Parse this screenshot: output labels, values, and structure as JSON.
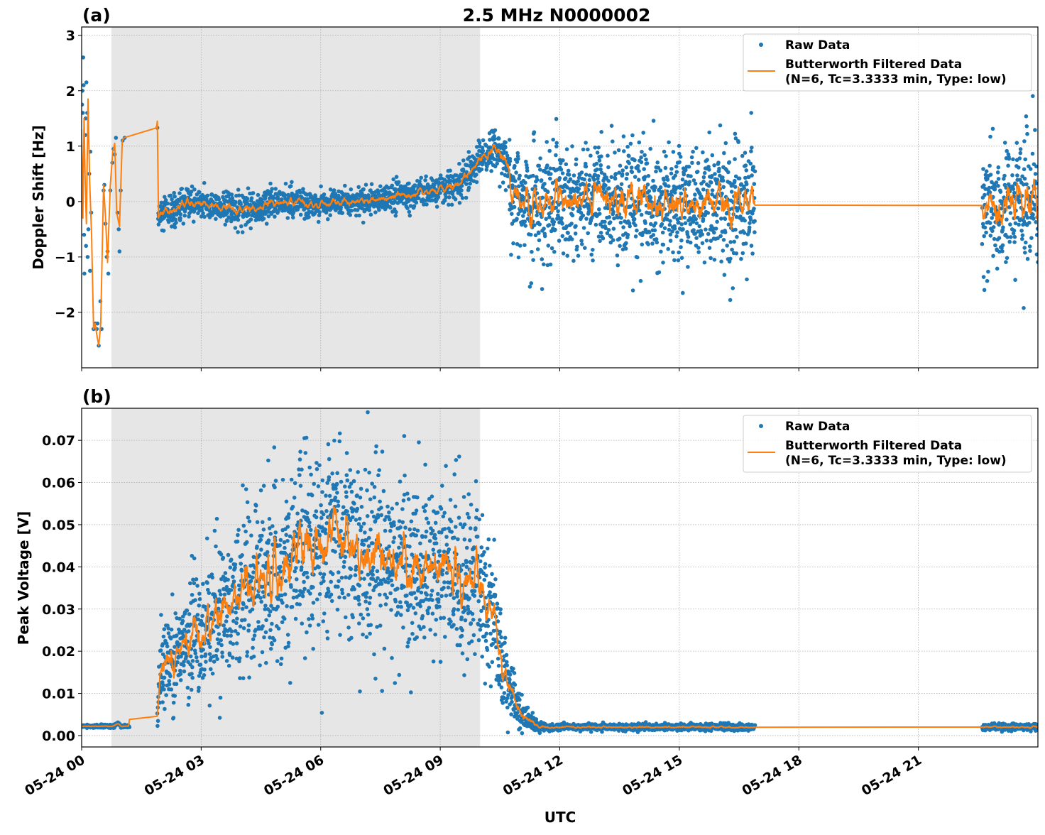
{
  "title": "2.5 MHz N0000002",
  "colors": {
    "raw": "#1f77b4",
    "filtered": "#ff7f0e",
    "shade": "#e6e6e6",
    "grid": "#b0b0b0"
  },
  "legend": {
    "raw_label": "Raw Data",
    "filtered_label_line1": "Butterworth Filtered Data",
    "filtered_label_line2": "(N=6, Tc=3.3333 min, Type: low)",
    "placement": "top-right"
  },
  "xaxis": {
    "label": "UTC",
    "unit": "hours since 05-24 00 UTC",
    "range": [
      0,
      24
    ],
    "ticks": [
      0,
      3,
      6,
      9,
      12,
      15,
      18,
      21
    ],
    "tick_labels": [
      "05-24 00",
      "05-24 03",
      "05-24 06",
      "05-24 09",
      "05-24 12",
      "05-24 15",
      "05-24 18",
      "05-24 21"
    ]
  },
  "chart_data": [
    {
      "panel_label": "(a)",
      "type": "scatter",
      "ylabel": "Doppler Shift [Hz]",
      "ylim": [
        -3.0,
        3.15
      ],
      "yticks": [
        -2,
        -1,
        0,
        1,
        2,
        3
      ],
      "ytick_labels": [
        "−2",
        "−1",
        "0",
        "1",
        "2",
        "3"
      ],
      "grid": true,
      "shaded_interval_hours": [
        0.75,
        10.0
      ],
      "raw_points": [
        [
          0.01,
          1.75
        ],
        [
          0.02,
          2.0
        ],
        [
          0.03,
          1.6
        ],
        [
          0.04,
          2.6
        ],
        [
          0.05,
          2.1
        ],
        [
          0.06,
          -0.6
        ],
        [
          0.07,
          -1.3
        ],
        [
          0.09,
          1.2
        ],
        [
          0.1,
          1.5
        ],
        [
          0.11,
          -0.8
        ],
        [
          0.12,
          2.15
        ],
        [
          0.14,
          1.6
        ],
        [
          0.15,
          -1.0
        ],
        [
          0.17,
          -0.5
        ],
        [
          0.19,
          0.5
        ],
        [
          0.21,
          -1.25
        ],
        [
          0.22,
          0.9
        ],
        [
          0.24,
          -0.2
        ],
        [
          0.3,
          -2.3
        ],
        [
          0.34,
          -2.2
        ],
        [
          0.38,
          -2.3
        ],
        [
          0.4,
          -2.2
        ],
        [
          0.43,
          -2.6
        ],
        [
          0.47,
          -1.8
        ],
        [
          0.5,
          -2.3
        ],
        [
          0.55,
          0.2
        ],
        [
          0.57,
          0.3
        ],
        [
          0.6,
          -0.4
        ],
        [
          0.63,
          -1.0
        ],
        [
          0.65,
          -0.9
        ],
        [
          0.67,
          -1.3
        ],
        [
          0.72,
          0.2
        ],
        [
          0.77,
          0.7
        ],
        [
          0.8,
          0.95
        ],
        [
          0.83,
          0.85
        ],
        [
          0.86,
          1.15
        ],
        [
          0.9,
          -0.2
        ],
        [
          0.93,
          -0.5
        ],
        [
          0.95,
          -0.9
        ],
        [
          0.98,
          0.2
        ],
        [
          1.03,
          1.1
        ],
        [
          1.08,
          1.15
        ],
        [
          1.9,
          1.33
        ]
      ],
      "raw_envelope_segments": [
        {
          "hours": [
            1.92,
            10.75
          ],
          "knots": [
            [
              1.92,
              -0.3,
              0.35
            ],
            [
              2.5,
              -0.1,
              0.3
            ],
            [
              3,
              -0.02,
              0.25
            ],
            [
              4,
              -0.18,
              0.3
            ],
            [
              4.5,
              -0.1,
              0.3
            ],
            [
              5,
              0,
              0.25
            ],
            [
              6,
              -0.05,
              0.22
            ],
            [
              7,
              0,
              0.25
            ],
            [
              8,
              0.1,
              0.25
            ],
            [
              9,
              0.2,
              0.25
            ],
            [
              9.5,
              0.3,
              0.3
            ],
            [
              10,
              0.8,
              0.35
            ],
            [
              10.4,
              1.0,
              0.35
            ],
            [
              10.75,
              0.6,
              0.5
            ]
          ]
        },
        {
          "hours": [
            10.75,
            16.9
          ],
          "knots": [
            [
              10.75,
              0.2,
              1.0
            ],
            [
              11,
              0,
              1.1
            ],
            [
              16.9,
              0,
              1.1
            ]
          ]
        },
        {
          "hours": [
            22.6,
            24.0
          ],
          "knots": [
            [
              22.6,
              0,
              1.1
            ],
            [
              24,
              0,
              1.1
            ]
          ]
        }
      ],
      "filtered_points": [
        [
          0,
          1.3
        ],
        [
          0.03,
          -0.3
        ],
        [
          0.06,
          1.5
        ],
        [
          0.09,
          0.3
        ],
        [
          0.12,
          -0.4
        ],
        [
          0.16,
          1.85
        ],
        [
          0.2,
          0.4
        ],
        [
          0.25,
          -0.6
        ],
        [
          0.3,
          -2.3
        ],
        [
          0.34,
          -2.2
        ],
        [
          0.38,
          -2.4
        ],
        [
          0.43,
          -2.6
        ],
        [
          0.48,
          -2.2
        ],
        [
          0.55,
          0.3
        ],
        [
          0.6,
          -0.3
        ],
        [
          0.65,
          -1.1
        ],
        [
          0.72,
          0.3
        ],
        [
          0.78,
          0.9
        ],
        [
          0.83,
          1.05
        ],
        [
          0.88,
          -0.2
        ],
        [
          0.95,
          -0.45
        ],
        [
          1.02,
          1.1
        ],
        [
          1.06,
          1.15
        ],
        [
          1.88,
          1.33
        ],
        [
          1.9,
          1.45
        ],
        [
          1.93,
          -0.3
        ]
      ]
    },
    {
      "panel_label": "(b)",
      "type": "scatter",
      "ylabel": "Peak Voltage [V]",
      "ylim": [
        -0.0027,
        0.0776
      ],
      "yticks": [
        0,
        0.01,
        0.02,
        0.03,
        0.04,
        0.05,
        0.06,
        0.07
      ],
      "ytick_labels": [
        "0.00",
        "0.01",
        "0.02",
        "0.03",
        "0.04",
        "0.05",
        "0.06",
        "0.07"
      ],
      "grid": true,
      "shaded_interval_hours": [
        0.75,
        10.0
      ],
      "raw_points": [],
      "raw_envelope_segments": [
        {
          "hours": [
            0,
            1.2
          ],
          "knots": [
            [
              0,
              0.0022,
              0.0004
            ],
            [
              0.8,
              0.0022,
              0.0004
            ],
            [
              0.9,
              0.003,
              0.0004
            ],
            [
              1.0,
              0.0022,
              0.0004
            ],
            [
              1.2,
              0.0022,
              0.0004
            ]
          ]
        },
        {
          "hours": [
            1.9,
            16.9
          ],
          "knots": [
            [
              1.9,
              0.005,
              0.004
            ],
            [
              2.0,
              0.015,
              0.01
            ],
            [
              3,
              0.025,
              0.016
            ],
            [
              4,
              0.033,
              0.02
            ],
            [
              5,
              0.04,
              0.022
            ],
            [
              6,
              0.045,
              0.024
            ],
            [
              6.5,
              0.047,
              0.024
            ],
            [
              7,
              0.044,
              0.022
            ],
            [
              8,
              0.04,
              0.02
            ],
            [
              9,
              0.04,
              0.02
            ],
            [
              10,
              0.035,
              0.02
            ],
            [
              10.3,
              0.03,
              0.016
            ],
            [
              10.6,
              0.015,
              0.01
            ],
            [
              11,
              0.005,
              0.004
            ],
            [
              11.5,
              0.002,
              0.0008
            ],
            [
              16.9,
              0.002,
              0.0008
            ]
          ]
        },
        {
          "hours": [
            22.6,
            24.0
          ],
          "knots": [
            [
              22.6,
              0.002,
              0.0008
            ],
            [
              24,
              0.002,
              0.0008
            ]
          ]
        }
      ],
      "filtered_points": []
    }
  ]
}
